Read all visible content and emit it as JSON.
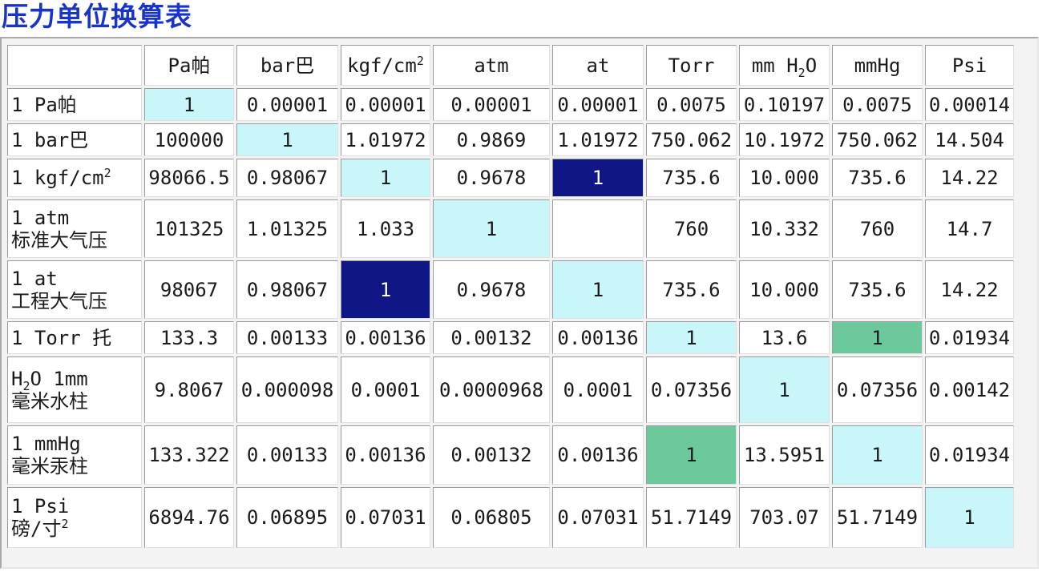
{
  "title": "压力单位换算表",
  "colors": {
    "title": "#1a33c8",
    "light_cyan": "#c9f6f8",
    "navy": "#0f1685",
    "green": "#6cc99b"
  },
  "columns": [
    "Pa帕",
    "bar巴",
    "kgf/cm",
    "atm",
    "at",
    "Torr",
    "mm H",
    "mmHg",
    "Psi"
  ],
  "rows": [
    {
      "label": "1 Pa帕",
      "label2": "",
      "values": [
        "1",
        "0.00001",
        "0.00001",
        "0.00001",
        "0.00001",
        "0.0075",
        "0.10197",
        "0.0075",
        "0.00014"
      ]
    },
    {
      "label": "1 bar巴",
      "label2": "",
      "values": [
        "100000",
        "1",
        "1.01972",
        "0.9869",
        "1.01972",
        "750.062",
        "10.1972",
        "750.062",
        "14.504"
      ]
    },
    {
      "label": "1 kgf/cm",
      "label2": "",
      "values": [
        "98066.5",
        "0.98067",
        "1",
        "0.9678",
        "1",
        "735.6",
        "10.000",
        "735.6",
        "14.22"
      ]
    },
    {
      "label": "1 atm",
      "label2": "标准大气压",
      "values": [
        "101325",
        "1.01325",
        "1.033",
        "1",
        "",
        "760",
        "10.332",
        "760",
        "14.7"
      ]
    },
    {
      "label": "1 at",
      "label2": "工程大气压",
      "values": [
        "98067",
        "0.98067",
        "1",
        "0.9678",
        "1",
        "735.6",
        "10.000",
        "735.6",
        "14.22"
      ]
    },
    {
      "label": "1 Torr 托",
      "label2": "",
      "values": [
        "133.3",
        "0.00133",
        "0.00136",
        "0.00132",
        "0.00136",
        "1",
        "13.6",
        "1",
        "0.01934"
      ]
    },
    {
      "label": "H",
      "label2": "毫米水柱",
      "values": [
        "9.8067",
        "0.000098",
        "0.0001",
        "0.0000968",
        "0.0001",
        "0.07356",
        "1",
        "0.07356",
        "0.00142"
      ]
    },
    {
      "label": "1 mmHg",
      "label2": "毫米汞柱",
      "values": [
        "133.322",
        "0.00133",
        "0.00136",
        "0.00132",
        "0.00136",
        "1",
        "13.5951",
        "1",
        "0.01934"
      ]
    },
    {
      "label": "1 Psi",
      "label2": "磅/寸",
      "values": [
        "6894.76",
        "0.06895",
        "0.07031",
        "0.06805",
        "0.07031",
        "51.7149",
        "703.07",
        "51.7149",
        "1"
      ]
    }
  ]
}
